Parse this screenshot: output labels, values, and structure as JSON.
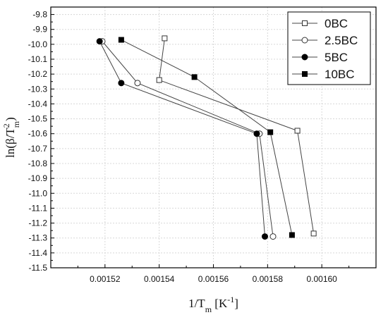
{
  "chart_data": {
    "type": "scatter",
    "xlabel": "1/T",
    "xlabel_sub": "m",
    "xlabel_unit": " [K",
    "xlabel_unit_sup": "-1",
    "xlabel_unit_end": "]",
    "ylabel": "ln(β/T",
    "ylabel_sup": "2",
    "ylabel_sub": "m",
    "ylabel_end": ")",
    "xlim": [
      0.0015,
      0.00162
    ],
    "ylim": [
      -11.5,
      -9.75
    ],
    "x_ticks": [
      0.00152,
      0.00154,
      0.00156,
      0.00158,
      0.0016
    ],
    "x_tick_labels": [
      "0.00152",
      "0.00154",
      "0.00156",
      "0.00158",
      "0.00160"
    ],
    "y_ticks": [
      -9.8,
      -9.9,
      -10.0,
      -10.1,
      -10.2,
      -10.3,
      -10.4,
      -10.5,
      -10.6,
      -10.7,
      -10.8,
      -10.9,
      -11.0,
      -11.1,
      -11.2,
      -11.3,
      -11.4,
      -11.5
    ],
    "y_tick_labels": [
      "-9.8",
      "-9.9",
      "-10.0",
      "-10.1",
      "-10.2",
      "-10.3",
      "-10.4",
      "-10.5",
      "-10.6",
      "-10.7",
      "-10.8",
      "-10.9",
      "-11.0",
      "-11.1",
      "-11.2",
      "-11.3",
      "-11.4",
      "-11.5"
    ],
    "grid": true,
    "legend_position": "top-right",
    "series": [
      {
        "name": "0BC",
        "marker": "open-square",
        "color": "#333333",
        "x": [
          0.001542,
          0.00154,
          0.001591,
          0.001597
        ],
        "y": [
          -9.96,
          -10.24,
          -10.58,
          -11.27
        ]
      },
      {
        "name": "2.5BC",
        "marker": "open-circle",
        "color": "#333333",
        "x": [
          0.001519,
          0.001532,
          0.001577,
          0.001582
        ],
        "y": [
          -9.98,
          -10.26,
          -10.6,
          -11.29
        ]
      },
      {
        "name": "5BC",
        "marker": "filled-circle",
        "color": "#000000",
        "x": [
          0.001518,
          0.001526,
          0.001576,
          0.001579
        ],
        "y": [
          -9.98,
          -10.26,
          -10.6,
          -11.29
        ]
      },
      {
        "name": "10BC",
        "marker": "filled-square",
        "color": "#000000",
        "x": [
          0.001526,
          0.001553,
          0.001581,
          0.001589
        ],
        "y": [
          -9.97,
          -10.22,
          -10.59,
          -11.28
        ]
      }
    ]
  }
}
